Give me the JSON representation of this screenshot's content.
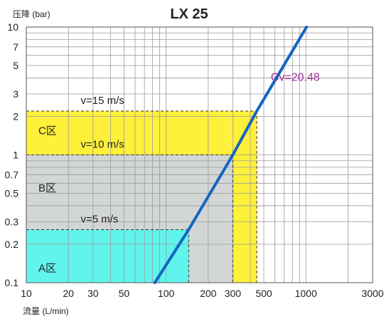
{
  "chart_data": {
    "type": "line",
    "title": "LX 25",
    "xlabel": "流量 (L/min)",
    "ylabel": "压降 (bar)",
    "x_scale": "log",
    "y_scale": "log",
    "xlim": [
      10,
      3000
    ],
    "ylim": [
      0.1,
      10
    ],
    "x_ticks": [
      10,
      20,
      30,
      50,
      100,
      200,
      300,
      500,
      1000,
      3000
    ],
    "y_ticks": [
      0.1,
      0.2,
      0.3,
      0.5,
      0.7,
      1,
      2,
      3,
      5,
      7,
      10
    ],
    "x_grid": [
      10,
      20,
      30,
      40,
      50,
      60,
      70,
      80,
      90,
      100,
      200,
      300,
      400,
      500,
      600,
      700,
      800,
      900,
      1000,
      2000,
      3000
    ],
    "y_grid": [
      0.1,
      0.2,
      0.3,
      0.4,
      0.5,
      0.6,
      0.7,
      0.8,
      0.9,
      1,
      2,
      3,
      4,
      5,
      6,
      7,
      8,
      9,
      10
    ],
    "grid": true,
    "series": [
      {
        "name": "",
        "color": "#1565c0",
        "points": [
          [
            83,
            0.1
          ],
          [
            145,
            0.26
          ],
          [
            300,
            1.0
          ],
          [
            445,
            2.2
          ],
          [
            1010,
            10
          ]
        ]
      }
    ],
    "series_label": "Cv=20.48",
    "series_label_color": "#a0309a",
    "zones": [
      {
        "label": "A区",
        "color": "#61f4ec",
        "x_max": 145,
        "y_max": 0.26
      },
      {
        "label": "B区",
        "color": "#d2d6d4",
        "x_max": 300,
        "y_max": 1.0
      },
      {
        "label": "C区",
        "color": "#fff03a",
        "x_max": 445,
        "y_max": 2.2
      }
    ],
    "velocity_lines": [
      {
        "label": "v=5 m/s",
        "flow": 145,
        "pressure": 0.26
      },
      {
        "label": "v=10 m/s",
        "flow": 300,
        "pressure": 1.0
      },
      {
        "label": "v=15 m/s",
        "flow": 445,
        "pressure": 2.2
      }
    ]
  }
}
